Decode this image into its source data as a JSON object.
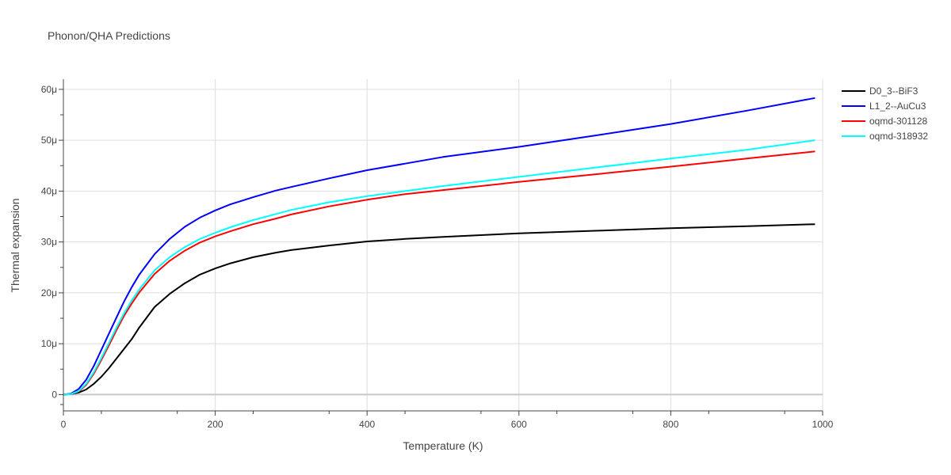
{
  "chart_data": {
    "type": "line",
    "title": "Phonon/QHA Predictions",
    "xlabel": "Temperature (K)",
    "ylabel": "Thermal expansion",
    "xlim": [
      0,
      1000
    ],
    "ylim": [
      -3.2e-06,
      6.2e-05
    ],
    "x_ticks": [
      0,
      200,
      400,
      600,
      800,
      1000
    ],
    "x_tick_labels": [
      "0",
      "200",
      "400",
      "600",
      "800",
      "1000"
    ],
    "y_ticks": [
      0,
      1e-05,
      2e-05,
      3e-05,
      4e-05,
      5e-05,
      6e-05
    ],
    "y_tick_labels": [
      "0",
      "10μ",
      "20μ",
      "30μ",
      "40μ",
      "50μ",
      "60μ"
    ],
    "grid": true,
    "legend_position": "top-right",
    "series": [
      {
        "name": "D0_3--BiF3",
        "color": "#000000",
        "x": [
          0,
          10,
          20,
          30,
          40,
          50,
          60,
          70,
          80,
          90,
          100,
          120,
          140,
          160,
          180,
          200,
          220,
          250,
          280,
          300,
          350,
          400,
          450,
          500,
          600,
          700,
          800,
          900,
          990
        ],
        "y": [
          0,
          1e-07,
          4e-07,
          1e-06,
          2.1e-06,
          3.5e-06,
          5.2e-06,
          7.1e-06,
          9e-06,
          1.09e-05,
          1.32e-05,
          1.72e-05,
          1.98e-05,
          2.19e-05,
          2.36e-05,
          2.48e-05,
          2.58e-05,
          2.7e-05,
          2.79e-05,
          2.84e-05,
          2.93e-05,
          3.01e-05,
          3.06e-05,
          3.1e-05,
          3.17e-05,
          3.22e-05,
          3.27e-05,
          3.31e-05,
          3.35e-05
        ]
      },
      {
        "name": "L1_2--AuCu3",
        "color": "#0000ff",
        "x": [
          0,
          10,
          20,
          30,
          40,
          50,
          60,
          70,
          80,
          90,
          100,
          120,
          140,
          160,
          180,
          200,
          220,
          250,
          280,
          300,
          350,
          400,
          450,
          500,
          600,
          700,
          800,
          900,
          990
        ],
        "y": [
          0,
          2e-07,
          1.1e-06,
          2.9e-06,
          5.6e-06,
          8.8e-06,
          1.2e-05,
          1.52e-05,
          1.83e-05,
          2.11e-05,
          2.36e-05,
          2.76e-05,
          3.06e-05,
          3.3e-05,
          3.48e-05,
          3.62e-05,
          3.74e-05,
          3.88e-05,
          4.01e-05,
          4.08e-05,
          4.25e-05,
          4.41e-05,
          4.54e-05,
          4.67e-05,
          4.87e-05,
          5.09e-05,
          5.32e-05,
          5.58e-05,
          5.83e-05
        ]
      },
      {
        "name": "oqmd-301128",
        "color": "#ff0000",
        "x": [
          0,
          10,
          20,
          30,
          40,
          50,
          60,
          70,
          80,
          90,
          100,
          120,
          140,
          160,
          180,
          200,
          220,
          250,
          280,
          300,
          350,
          400,
          450,
          500,
          600,
          700,
          800,
          900,
          990
        ],
        "y": [
          0,
          1e-07,
          6e-07,
          1.9e-06,
          4.1e-06,
          6.8e-06,
          9.7e-06,
          1.27e-05,
          1.55e-05,
          1.79e-05,
          2.01e-05,
          2.37e-05,
          2.63e-05,
          2.83e-05,
          2.99e-05,
          3.11e-05,
          3.21e-05,
          3.35e-05,
          3.46e-05,
          3.54e-05,
          3.7e-05,
          3.83e-05,
          3.94e-05,
          4.02e-05,
          4.18e-05,
          4.33e-05,
          4.48e-05,
          4.64e-05,
          4.78e-05
        ]
      },
      {
        "name": "oqmd-318932",
        "color": "#00ffff",
        "x": [
          0,
          10,
          20,
          30,
          40,
          50,
          60,
          70,
          80,
          90,
          100,
          120,
          140,
          160,
          180,
          200,
          220,
          250,
          280,
          300,
          350,
          400,
          450,
          500,
          600,
          700,
          800,
          900,
          990
        ],
        "y": [
          0,
          1e-07,
          7e-07,
          2.1e-06,
          4.4e-06,
          7.2e-06,
          1.02e-05,
          1.32e-05,
          1.6e-05,
          1.85e-05,
          2.07e-05,
          2.44e-05,
          2.7e-05,
          2.9e-05,
          3.06e-05,
          3.18e-05,
          3.29e-05,
          3.43e-05,
          3.55e-05,
          3.63e-05,
          3.78e-05,
          3.9e-05,
          4e-05,
          4.1e-05,
          4.28e-05,
          4.46e-05,
          4.64e-05,
          4.81e-05,
          5e-05
        ]
      }
    ]
  }
}
